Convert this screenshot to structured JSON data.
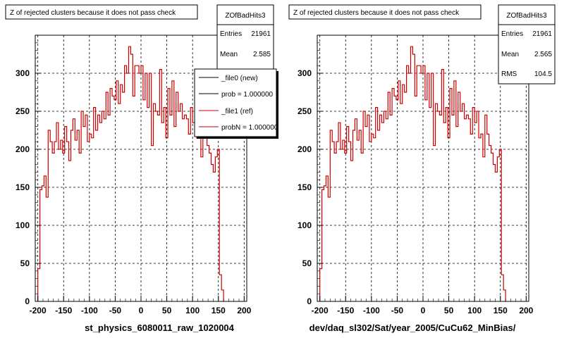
{
  "chart_data": [
    {
      "type": "histogram",
      "title": "Z of rejected clusters  because it does not pass check",
      "xlabel": "st_physics_6080011_raw_1020004",
      "ylabel": "",
      "xlim": [
        -205,
        205
      ],
      "ylim": [
        0,
        350
      ],
      "xticks": [
        "-200",
        "-150",
        "-100",
        "-50",
        "0",
        "50",
        "100",
        "150",
        "200"
      ],
      "yticks": [
        "0",
        "50",
        "100",
        "150",
        "200",
        "250",
        "300"
      ],
      "grid": true,
      "stats": {
        "name": "ZOfBadHits3",
        "rows": [
          {
            "label": "Entries",
            "value": "21961"
          },
          {
            "label": "Mean",
            "value": "2.585"
          }
        ]
      },
      "legend": {
        "placement": "top-right",
        "entries": [
          {
            "label": "_file0 (new)",
            "color": "#000000"
          },
          {
            "label": "prob = 1.000000",
            "color": "#000000"
          },
          {
            "label": "_file1 (ref)",
            "color": "#cc0000"
          },
          {
            "label": "probN = 1.000000",
            "color": "#cc0000"
          }
        ]
      },
      "bin_width": 4,
      "bins_start": -200,
      "series": [
        {
          "color": "#cc0000",
          "values": [
            43,
            147,
            152,
            165,
            137,
            225,
            210,
            195,
            210,
            235,
            200,
            212,
            195,
            230,
            210,
            185,
            225,
            240,
            212,
            225,
            195,
            250,
            230,
            245,
            210,
            220,
            215,
            255,
            225,
            245,
            235,
            250,
            240,
            275,
            245,
            280,
            270,
            265,
            290,
            260,
            285,
            275,
            310,
            300,
            335,
            325,
            270,
            310,
            310,
            300,
            310,
            265,
            300,
            255,
            300,
            205,
            260,
            250,
            245,
            305,
            235,
            255,
            215,
            280,
            245,
            290,
            230,
            275,
            250,
            260,
            240,
            245,
            240,
            220,
            255,
            235,
            250,
            215,
            220,
            190,
            245,
            220,
            205,
            195,
            180,
            170,
            190,
            200,
            35,
            15
          ]
        }
      ]
    },
    {
      "type": "histogram",
      "title": "Z of rejected clusters  because it does not pass check",
      "xlabel": "dev/daq_sl302/Sat/year_2005/CuCu62_MinBias/",
      "ylabel": "",
      "xlim": [
        -205,
        205
      ],
      "ylim": [
        0,
        350
      ],
      "xticks": [
        "-200",
        "-150",
        "-100",
        "-50",
        "0",
        "50",
        "100",
        "150",
        "200"
      ],
      "yticks": [
        "0",
        "50",
        "100",
        "150",
        "200",
        "250",
        "300"
      ],
      "grid": true,
      "stats": {
        "name": "ZOfBadHits3",
        "rows": [
          {
            "label": "Entries",
            "value": "21961"
          },
          {
            "label": "Mean",
            "value": "2.565"
          },
          {
            "label": "RMS",
            "value": "104.5"
          }
        ]
      },
      "bin_width": 4,
      "bins_start": -200,
      "series": [
        {
          "color": "#cc0000",
          "values": [
            43,
            147,
            152,
            165,
            137,
            225,
            210,
            195,
            210,
            235,
            200,
            212,
            195,
            230,
            210,
            185,
            225,
            240,
            212,
            225,
            195,
            250,
            230,
            245,
            210,
            220,
            215,
            255,
            225,
            245,
            235,
            250,
            240,
            275,
            245,
            280,
            270,
            265,
            290,
            260,
            285,
            275,
            310,
            300,
            335,
            325,
            270,
            310,
            310,
            300,
            310,
            265,
            300,
            255,
            300,
            205,
            260,
            250,
            245,
            305,
            235,
            255,
            215,
            280,
            245,
            290,
            230,
            275,
            250,
            260,
            240,
            245,
            240,
            220,
            255,
            235,
            250,
            215,
            220,
            190,
            245,
            220,
            205,
            195,
            180,
            170,
            190,
            200,
            35,
            15
          ]
        }
      ]
    }
  ]
}
